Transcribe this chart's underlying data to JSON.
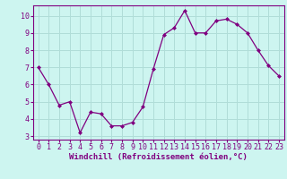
{
  "x": [
    0,
    1,
    2,
    3,
    4,
    5,
    6,
    7,
    8,
    9,
    10,
    11,
    12,
    13,
    14,
    15,
    16,
    17,
    18,
    19,
    20,
    21,
    22,
    23
  ],
  "y": [
    7.0,
    6.0,
    4.8,
    5.0,
    3.2,
    4.4,
    4.3,
    3.6,
    3.6,
    3.8,
    4.7,
    6.9,
    8.9,
    9.3,
    10.3,
    9.0,
    9.0,
    9.7,
    9.8,
    9.5,
    9.0,
    8.0,
    7.1,
    6.5
  ],
  "line_color": "#800080",
  "marker": "D",
  "marker_size": 2.0,
  "bg_color": "#cdf5f0",
  "grid_color": "#b0ddd8",
  "xlabel": "Windchill (Refroidissement éolien,°C)",
  "xlim": [
    -0.5,
    23.5
  ],
  "ylim": [
    2.8,
    10.6
  ],
  "yticks": [
    3,
    4,
    5,
    6,
    7,
    8,
    9,
    10
  ],
  "xticks": [
    0,
    1,
    2,
    3,
    4,
    5,
    6,
    7,
    8,
    9,
    10,
    11,
    12,
    13,
    14,
    15,
    16,
    17,
    18,
    19,
    20,
    21,
    22,
    23
  ],
  "xlabel_fontsize": 6.5,
  "tick_fontsize": 6.0,
  "axis_color": "#800080",
  "label_color": "#800080",
  "spine_color": "#800080"
}
